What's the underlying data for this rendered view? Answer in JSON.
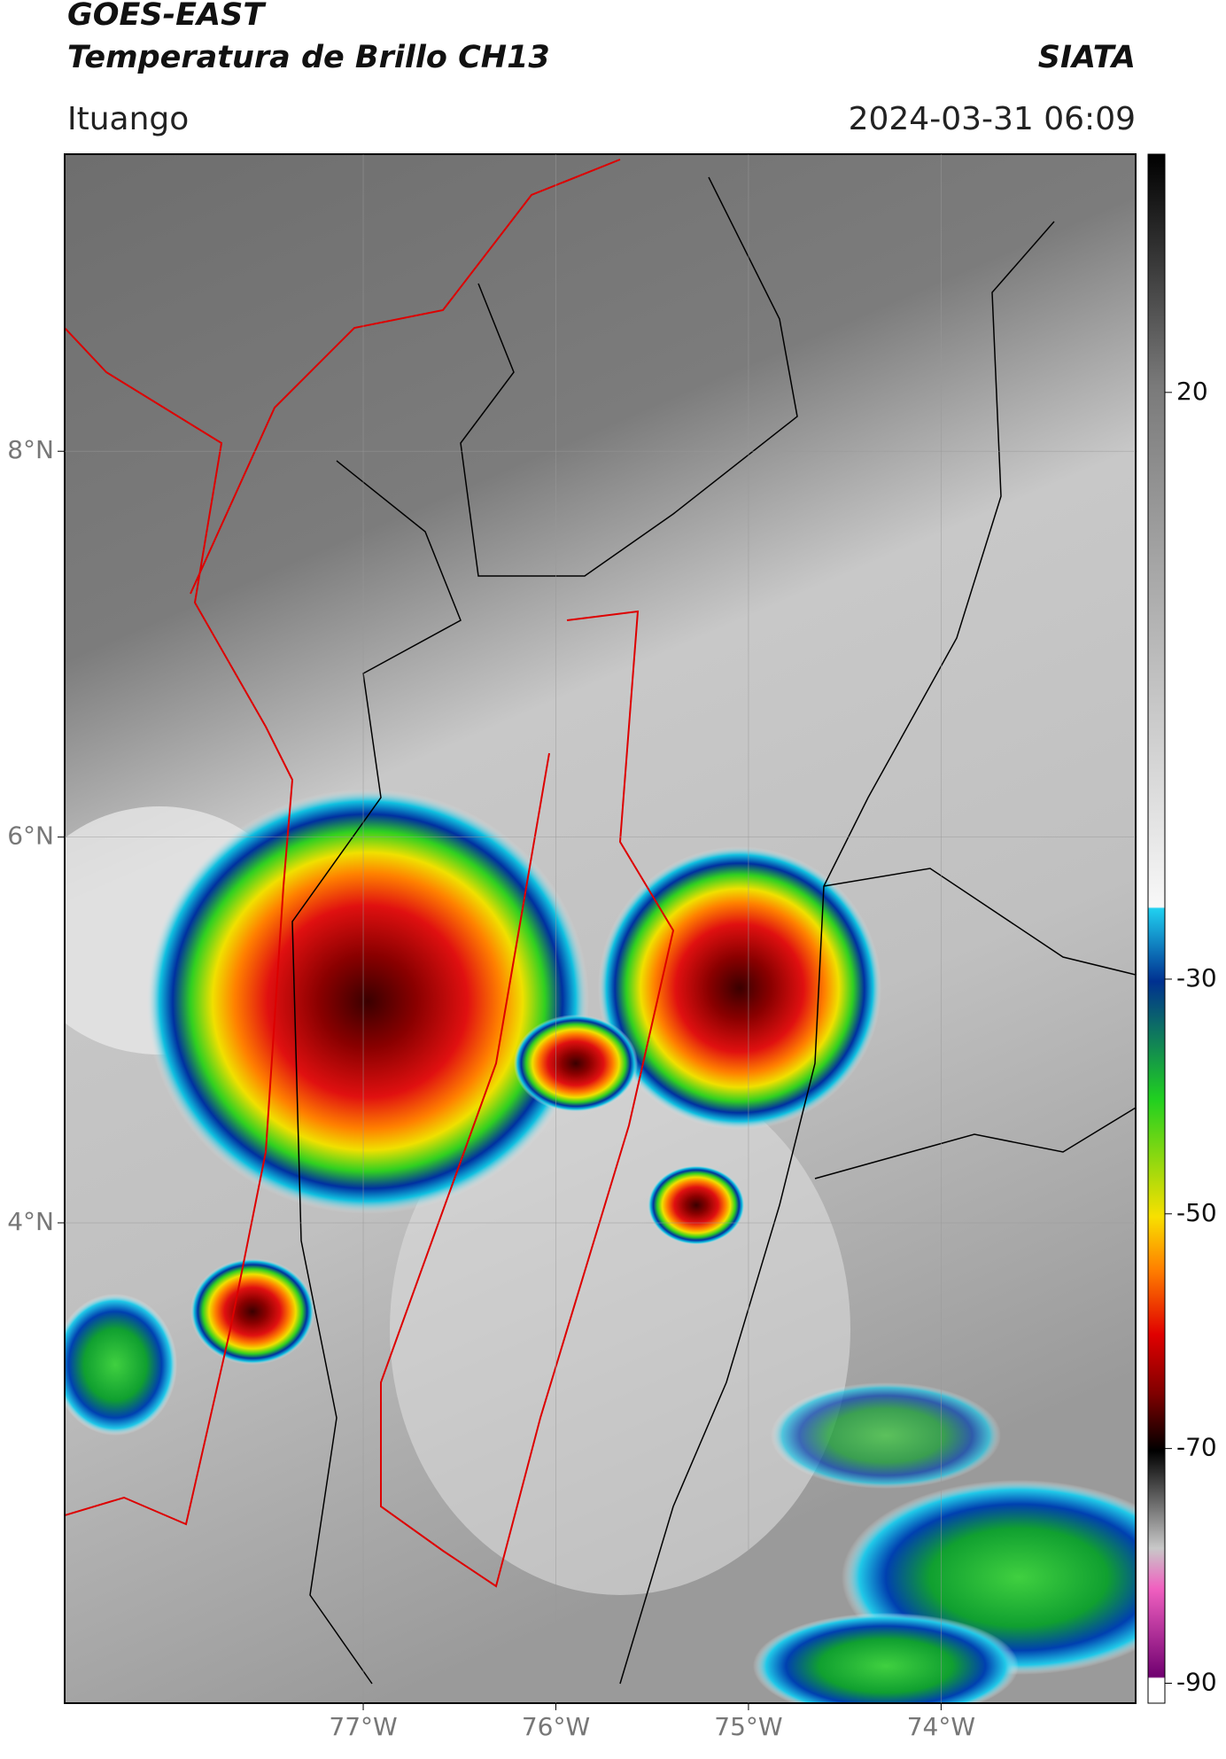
{
  "header": {
    "title_line1": "GOES-EAST",
    "title_line2": "Temperatura de Brillo CH13",
    "brand": "SIATA",
    "location": "Ituango",
    "datetime": "2024-03-31 06:09"
  },
  "chart_data": {
    "type": "map",
    "xlim": [
      -78.55,
      -72.99
    ],
    "xticks": [
      {
        "value": -77,
        "label": "77°W"
      },
      {
        "value": -76,
        "label": "76°W"
      },
      {
        "value": -75,
        "label": "75°W"
      },
      {
        "value": -74,
        "label": "74°W"
      }
    ],
    "ylim": [
      1.51,
      9.54
    ],
    "yticks": [
      {
        "value": 4,
        "label": "4°N"
      },
      {
        "value": 6,
        "label": "6°N"
      },
      {
        "value": 8,
        "label": "8°N"
      }
    ],
    "grid": true,
    "colorbar": {
      "lim": [
        -91.7,
        40.3
      ],
      "ticks": [
        20,
        -30,
        -50,
        -70,
        -90
      ]
    }
  }
}
